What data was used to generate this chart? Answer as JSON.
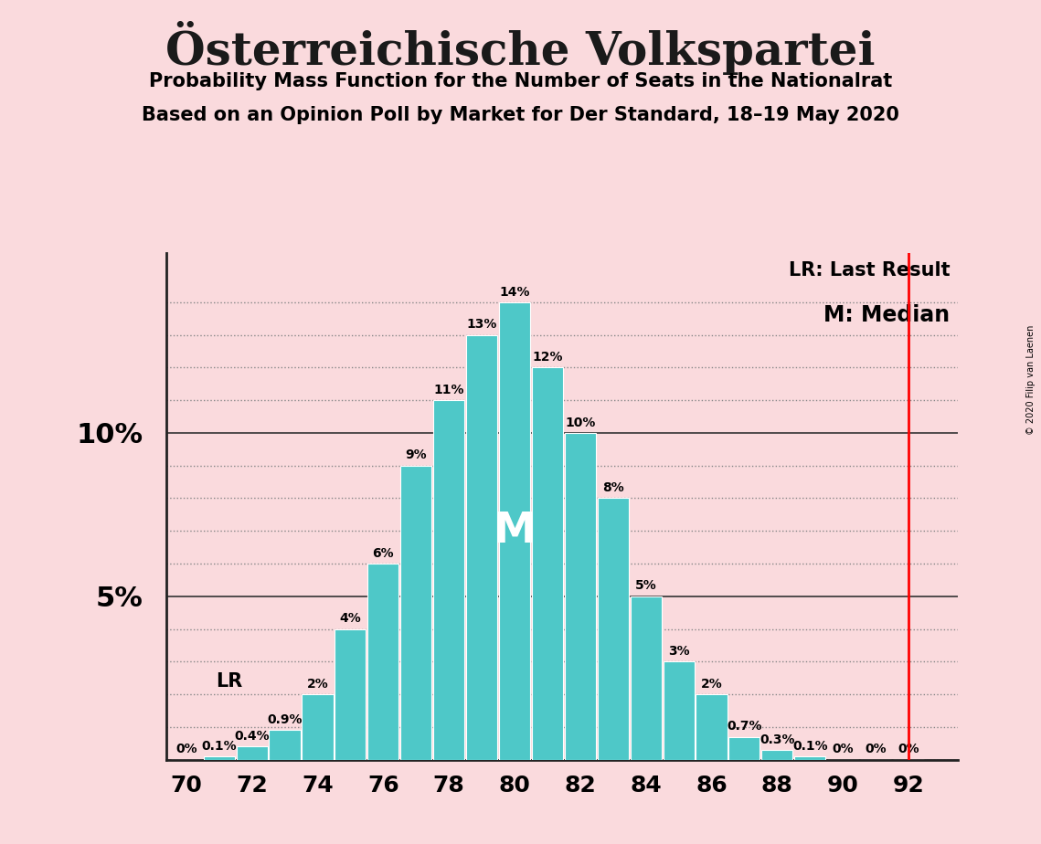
{
  "title": "Österreichische Volkspartei",
  "subtitle1": "Probability Mass Function for the Number of Seats in the Nationalrat",
  "subtitle2": "Based on an Opinion Poll by Market for Der Standard, 18–19 May 2020",
  "copyright": "© 2020 Filip van Laenen",
  "seats": [
    70,
    71,
    72,
    73,
    74,
    75,
    76,
    77,
    78,
    79,
    80,
    81,
    82,
    83,
    84,
    85,
    86,
    87,
    88,
    89,
    90,
    91,
    92
  ],
  "probabilities": [
    0.0,
    0.1,
    0.4,
    0.9,
    2.0,
    4.0,
    6.0,
    9.0,
    11.0,
    13.0,
    14.0,
    12.0,
    10.0,
    8.0,
    5.0,
    3.0,
    2.0,
    0.7,
    0.3,
    0.1,
    0.0,
    0.0,
    0.0
  ],
  "bar_color": "#4EC8C8",
  "background_color": "#FADADD",
  "median_seat": 80,
  "last_result_seat": 92,
  "ylim_max": 15.5,
  "grid_color": "#888888",
  "solid_line_color": "#333333",
  "lr_label": "LR",
  "median_label": "M",
  "legend_lr": "LR: Last Result",
  "legend_m": "M: Median",
  "bar_width": 0.95,
  "label_fontsize": 10,
  "tick_fontsize": 18,
  "ylabel_fontsize": 22,
  "title_fontsize": 36,
  "subtitle_fontsize": 15
}
